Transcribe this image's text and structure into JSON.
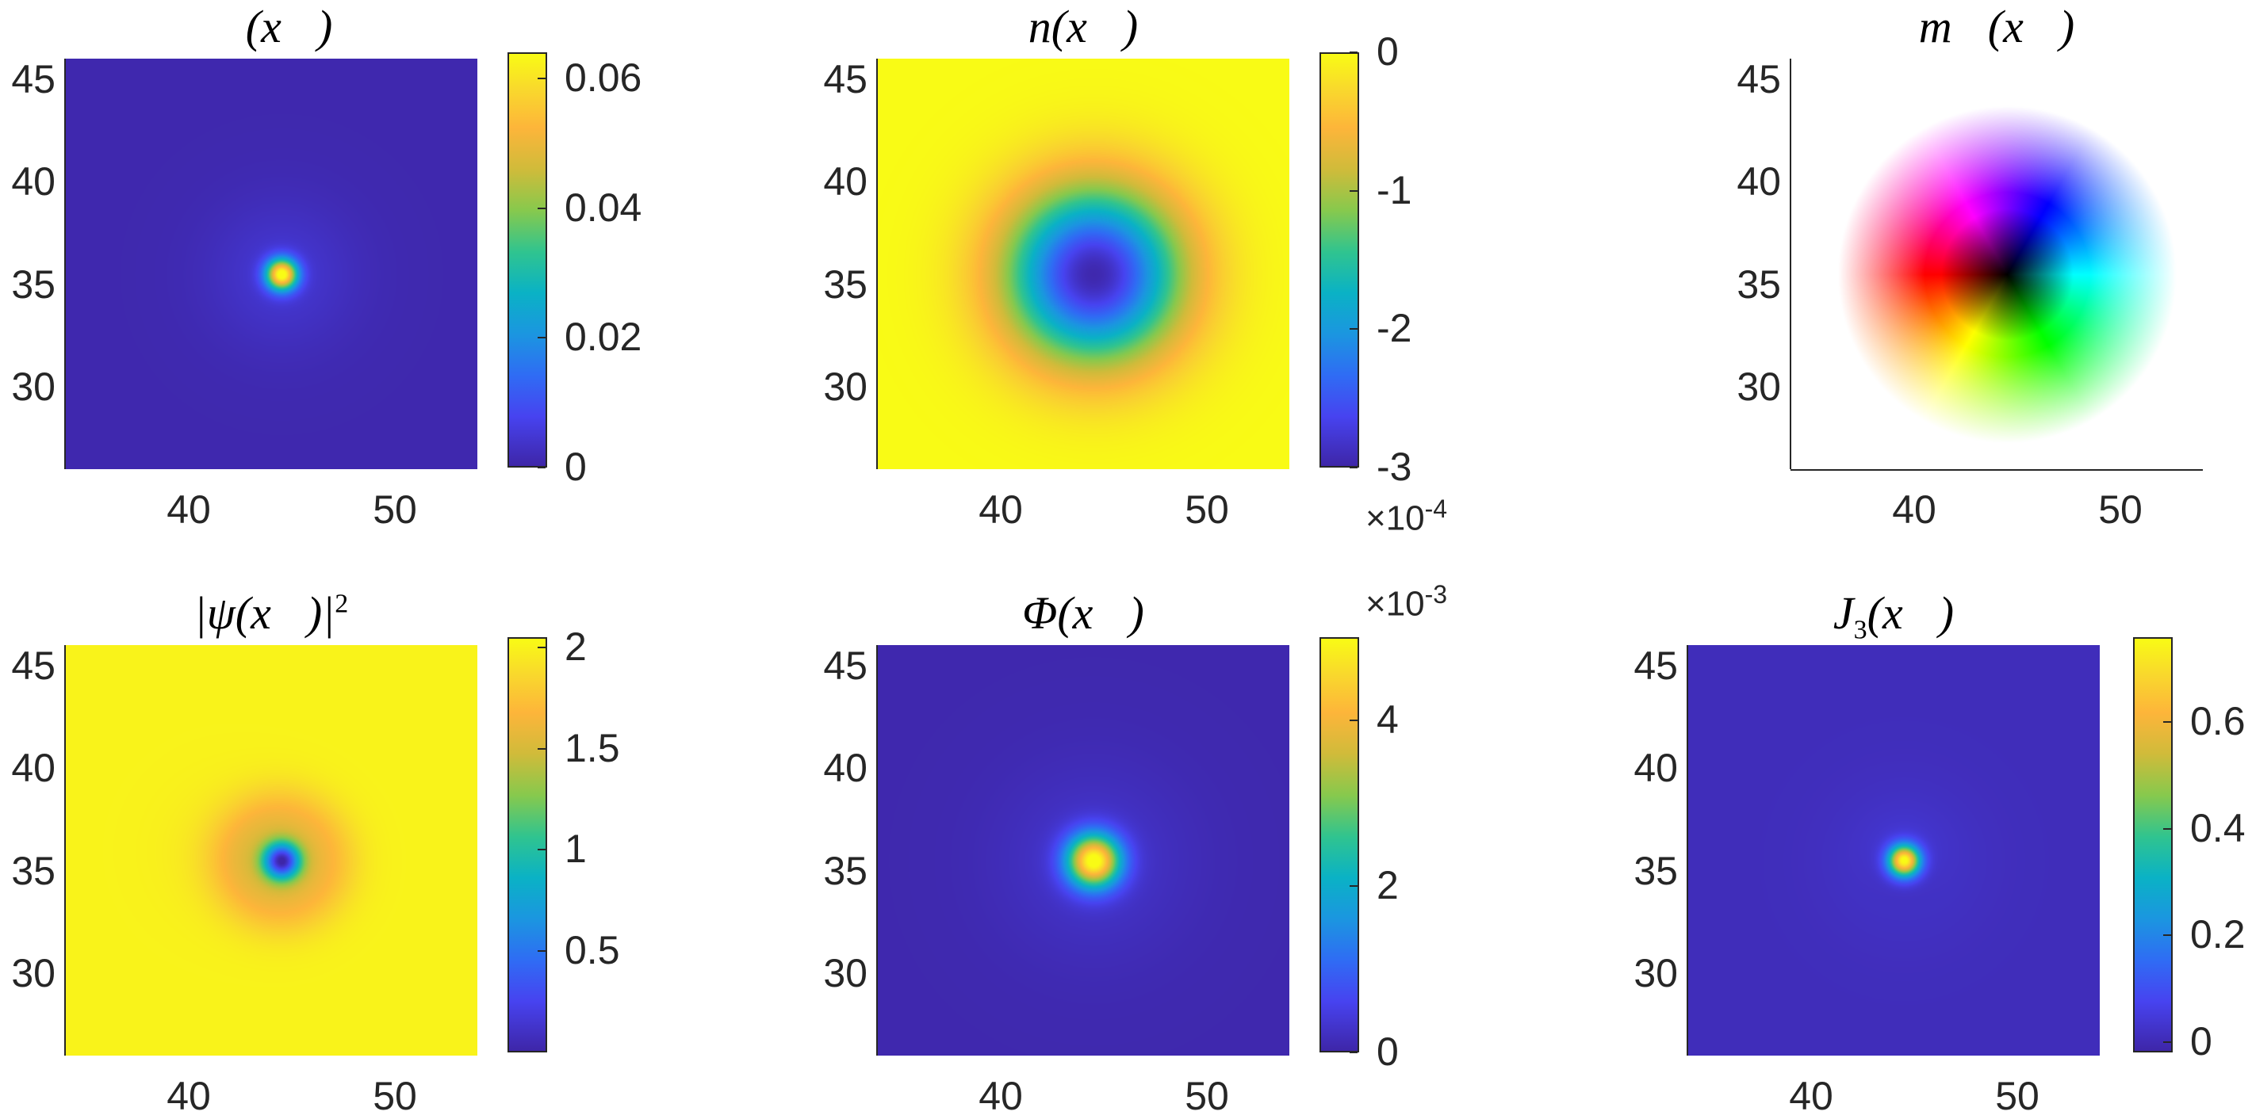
{
  "chart_data": [
    {
      "type": "heatmap",
      "title": "𝓔(x⃗)",
      "x_ticks": [
        "40",
        "50"
      ],
      "y_ticks": [
        "45",
        "40",
        "35",
        "30"
      ],
      "colorbar_ticks": [
        "0.06",
        "0.04",
        "0.02",
        "0"
      ],
      "colorbar_range": [
        0,
        0.064
      ],
      "colorbar_exponent": "",
      "xlim": [
        34,
        54
      ],
      "ylim": [
        26,
        46
      ],
      "feature": "small bright spot at center (x≈44.5, y≈35.5) on dark background",
      "peak_value": 0.064
    },
    {
      "type": "heatmap",
      "title": "n(x⃗)",
      "x_ticks": [
        "40",
        "50"
      ],
      "y_ticks": [
        "45",
        "40",
        "35",
        "30"
      ],
      "colorbar_ticks": [
        "0",
        "-1",
        "-2",
        "-3"
      ],
      "colorbar_range": [
        -3,
        0
      ],
      "colorbar_exponent": "×10",
      "colorbar_exponent_power": "-4",
      "xlim": [
        34,
        54
      ],
      "ylim": [
        26,
        46
      ],
      "feature": "broad ring-shaped depletion centered at (44.5, 35.5), minimum ≈ -3e-4",
      "min_value": -3.0
    },
    {
      "type": "heatmap",
      "title": "m⃗(x⃗)",
      "x_ticks": [
        "40",
        "50"
      ],
      "y_ticks": [
        "45",
        "40",
        "35",
        "30"
      ],
      "colorbar_ticks": [],
      "colorbar_exponent": "",
      "xlim": [
        34,
        54
      ],
      "ylim": [
        26,
        46
      ],
      "feature": "color-wheel texture: black core, red left, yellow top-left, green top, cyan right, blue bottom-right, magenta bottom-left, fading to white"
    },
    {
      "type": "heatmap",
      "title": "|ψ(x⃗)|",
      "title_sup": "2",
      "x_ticks": [
        "40",
        "50"
      ],
      "y_ticks": [
        "45",
        "40",
        "35",
        "30"
      ],
      "colorbar_ticks": [
        "2",
        "1.5",
        "1",
        "0.5"
      ],
      "colorbar_range": [
        0,
        2.05
      ],
      "colorbar_exponent": "",
      "xlim": [
        34,
        54
      ],
      "ylim": [
        26,
        46
      ],
      "feature": "vortex core with density dip to 0 at center, surrounded by orange halo on yellow background"
    },
    {
      "type": "heatmap",
      "title": "Φ(x⃗)",
      "x_ticks": [
        "40",
        "50"
      ],
      "y_ticks": [
        "45",
        "40",
        "35",
        "30"
      ],
      "colorbar_ticks": [
        "4",
        "2",
        "0"
      ],
      "colorbar_range": [
        0,
        5
      ],
      "colorbar_exponent": "×10",
      "colorbar_exponent_power": "-3",
      "xlim": [
        34,
        54
      ],
      "ylim": [
        26,
        46
      ],
      "feature": "gaussian bright spot at center, peak ≈ 5e-3",
      "peak_value": 5.0
    },
    {
      "type": "heatmap",
      "title": "J",
      "title_sub": "3",
      "title_rest": "(x⃗)",
      "x_ticks": [
        "40",
        "50"
      ],
      "y_ticks": [
        "45",
        "40",
        "35",
        "30"
      ],
      "colorbar_ticks": [
        "0.6",
        "0.4",
        "0.2",
        "0"
      ],
      "colorbar_range": [
        -0.02,
        0.76
      ],
      "colorbar_exponent": "",
      "xlim": [
        34,
        54
      ],
      "ylim": [
        26,
        46
      ],
      "feature": "small bright spot at center with slight dipole structure",
      "peak_value": 0.76
    }
  ]
}
